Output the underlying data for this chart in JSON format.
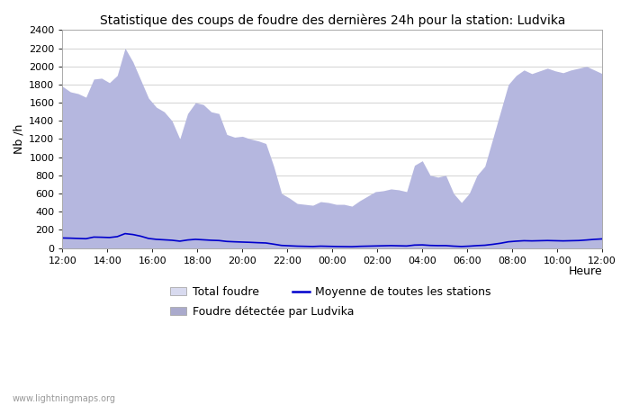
{
  "title": "Statistique des coups de foudre des dernières 24h pour la station: Ludvika",
  "xlabel": "Heure",
  "ylabel": "Nb /h",
  "xlim_labels": [
    "12:00",
    "14:00",
    "16:00",
    "18:00",
    "20:00",
    "22:00",
    "00:00",
    "02:00",
    "04:00",
    "06:00",
    "08:00",
    "10:00",
    "12:00"
  ],
  "ylim": [
    0,
    2400
  ],
  "yticks": [
    0,
    200,
    400,
    600,
    800,
    1000,
    1200,
    1400,
    1600,
    1800,
    2000,
    2200,
    2400
  ],
  "total_foudre": [
    1780,
    1720,
    1700,
    1660,
    1860,
    1870,
    1820,
    1900,
    2200,
    2050,
    1850,
    1650,
    1550,
    1500,
    1400,
    1200,
    1480,
    1600,
    1580,
    1500,
    1480,
    1250,
    1220,
    1230,
    1200,
    1180,
    1150,
    900,
    600,
    550,
    490,
    480,
    470,
    510,
    500,
    480,
    480,
    460,
    520,
    570,
    620,
    630,
    650,
    640,
    620,
    910,
    960,
    800,
    780,
    800,
    600,
    500,
    600,
    800,
    900,
    1200,
    1500,
    1800,
    1900,
    1960,
    1920,
    1950,
    1980,
    1950,
    1930,
    1960,
    1980,
    2000,
    1960,
    1920
  ],
  "local_foudre": [
    1780,
    1720,
    1700,
    1660,
    1860,
    1870,
    1820,
    1900,
    2200,
    2050,
    1850,
    1650,
    1550,
    1500,
    1400,
    1200,
    1480,
    1600,
    1580,
    1500,
    1480,
    1250,
    1220,
    1230,
    1200,
    1180,
    1150,
    900,
    600,
    550,
    490,
    480,
    470,
    510,
    500,
    480,
    480,
    460,
    520,
    570,
    620,
    630,
    650,
    640,
    620,
    910,
    960,
    800,
    780,
    800,
    600,
    500,
    600,
    800,
    900,
    1200,
    1500,
    1800,
    1900,
    1960,
    1920,
    1950,
    1980,
    1950,
    1930,
    1960,
    1980,
    2000,
    1960,
    1920
  ],
  "moyenne": [
    110,
    108,
    105,
    102,
    120,
    118,
    115,
    125,
    158,
    148,
    130,
    105,
    95,
    90,
    85,
    75,
    88,
    95,
    90,
    85,
    82,
    72,
    68,
    65,
    62,
    58,
    55,
    42,
    28,
    24,
    20,
    18,
    16,
    20,
    18,
    16,
    15,
    14,
    18,
    20,
    22,
    24,
    26,
    24,
    22,
    32,
    34,
    28,
    26,
    26,
    20,
    16,
    20,
    26,
    30,
    40,
    52,
    68,
    75,
    80,
    78,
    80,
    82,
    80,
    78,
    80,
    82,
    88,
    95,
    100
  ],
  "color_total": "#d8daef",
  "color_local": "#c8cadf",
  "color_moyenne": "#0000cc",
  "bg_color": "#ffffff",
  "grid_color": "#cccccc",
  "watermark": "www.lightningmaps.org",
  "title_fontsize": 10,
  "axis_fontsize": 9,
  "tick_fontsize": 8,
  "legend_total": "Total foudre",
  "legend_local": "Foudre détectée par Ludvika",
  "legend_moyenne": "Moyenne de toutes les stations"
}
